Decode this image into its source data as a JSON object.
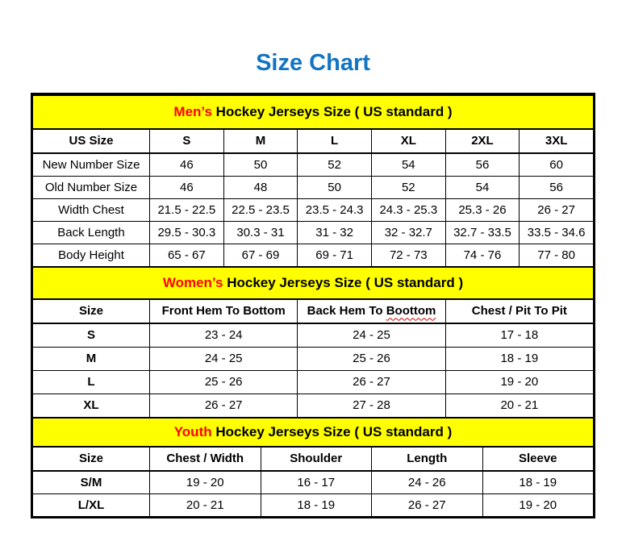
{
  "page": {
    "title": "Size Chart"
  },
  "colors": {
    "title_blue": "#1274C4",
    "accent_red": "#FF0000",
    "band_yellow": "#FFFF00"
  },
  "mens": {
    "title_highlight": "Men’s",
    "title_rest": " Hockey Jerseys Size ( US standard )",
    "columns": [
      "US Size",
      "S",
      "M",
      "L",
      "XL",
      "2XL",
      "3XL"
    ],
    "rows": [
      {
        "label": "New Number Size",
        "values": [
          "46",
          "50",
          "52",
          "54",
          "56",
          "60"
        ]
      },
      {
        "label": "Old Number Size",
        "values": [
          "46",
          "48",
          "50",
          "52",
          "54",
          "56"
        ]
      },
      {
        "label": "Width Chest",
        "values": [
          "21.5 - 22.5",
          "22.5 - 23.5",
          "23.5 - 24.3",
          "24.3 - 25.3",
          "25.3 - 26",
          "26 - 27"
        ]
      },
      {
        "label": "Back Length",
        "values": [
          "29.5 - 30.3",
          "30.3 - 31",
          "31 - 32",
          "32 - 32.7",
          "32.7 - 33.5",
          "33.5 - 34.6"
        ]
      },
      {
        "label": "Body Height",
        "values": [
          "65 - 67",
          "67 - 69",
          "69 - 71",
          "72 - 73",
          "74 - 76",
          "77 - 80"
        ]
      }
    ]
  },
  "womens": {
    "title_highlight": "Women’s",
    "title_rest": " Hockey Jerseys Size ( US standard )",
    "columns": {
      "size": "Size",
      "front_hem": "Front Hem To Bottom",
      "back_hem_prefix": "Back Hem To ",
      "back_hem_misspelled": "Boottom",
      "chest": "Chest / Pit To Pit"
    },
    "rows": [
      {
        "label": "S",
        "values": [
          "23 - 24",
          "24 - 25",
          "17 - 18"
        ]
      },
      {
        "label": "M",
        "values": [
          "24 - 25",
          "25 - 26",
          "18 - 19"
        ]
      },
      {
        "label": "L",
        "values": [
          "25 - 26",
          "26 - 27",
          "19 - 20"
        ]
      },
      {
        "label": "XL",
        "values": [
          "26 - 27",
          "27 - 28",
          "20 - 21"
        ]
      }
    ]
  },
  "youth": {
    "title_highlight": "Youth",
    "title_rest": " Hockey Jerseys Size ( US standard )",
    "columns": [
      "Size",
      "Chest / Width",
      "Shoulder",
      "Length",
      "Sleeve"
    ],
    "rows": [
      {
        "label": "S/M",
        "values": [
          "19 - 20",
          "16 - 17",
          "24 - 26",
          "18 - 19"
        ]
      },
      {
        "label": "L/XL",
        "values": [
          "20 - 21",
          "18 - 19",
          "26 - 27",
          "19 - 20"
        ]
      }
    ]
  }
}
